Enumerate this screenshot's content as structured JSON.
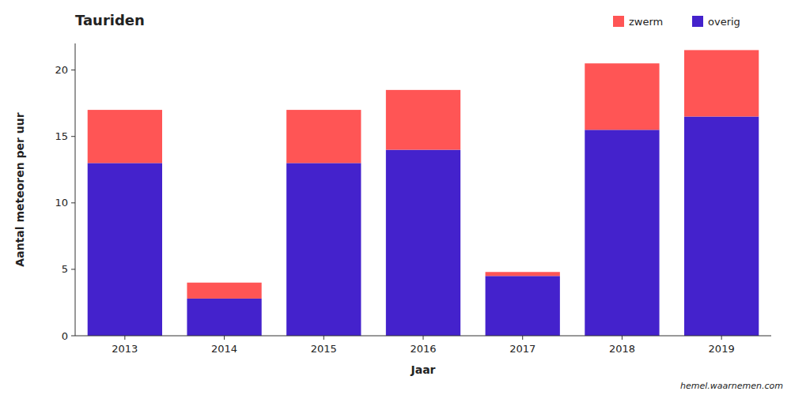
{
  "chart_data": {
    "type": "bar",
    "title": "Tauriden",
    "x_label": "Jaar",
    "y_label": "Aantal meteoren per uur",
    "categories": [
      "2013",
      "2014",
      "2015",
      "2016",
      "2017",
      "2018",
      "2019"
    ],
    "series": [
      {
        "name": "overig",
        "color": "#4422cc",
        "values": [
          13.0,
          2.8,
          13.0,
          14.0,
          4.5,
          15.5,
          16.5
        ]
      },
      {
        "name": "zwerm",
        "color": "#ff5555",
        "values": [
          4.0,
          1.2,
          4.0,
          4.5,
          0.3,
          5.0,
          5.0
        ]
      }
    ],
    "stacked": true,
    "ylim": [
      0,
      22
    ],
    "yticks": [
      0,
      5,
      10,
      15,
      20
    ],
    "grid": false,
    "legend": "upper right",
    "annotations": [
      "hemel.waarnemen.com"
    ]
  }
}
